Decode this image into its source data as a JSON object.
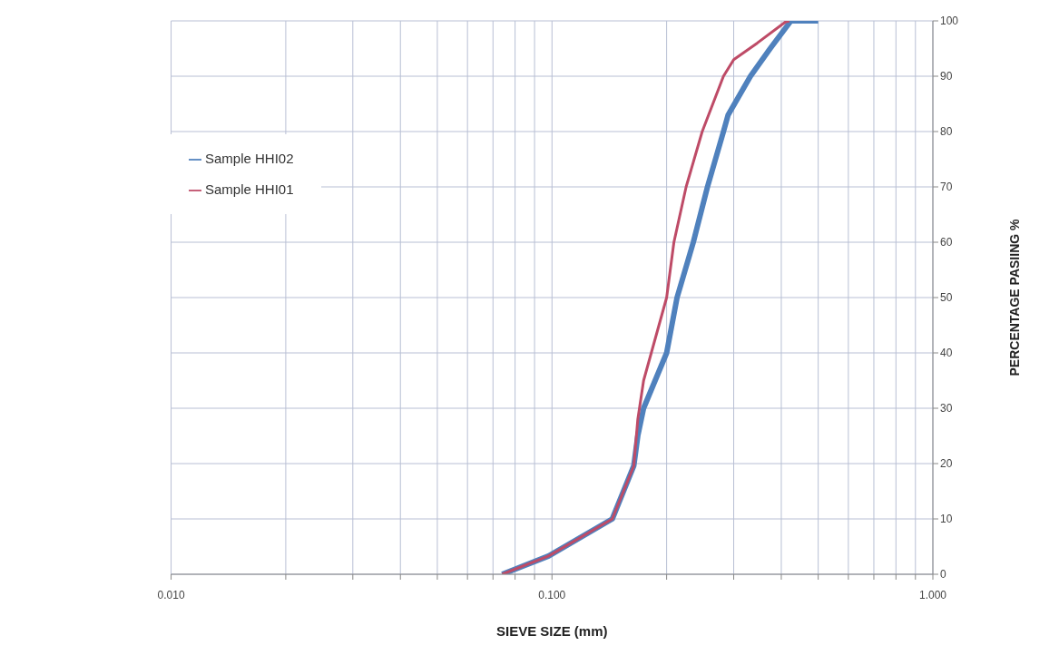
{
  "chart_data": {
    "type": "line",
    "xlabel": "SIEVE SIZE (mm)",
    "ylabel": "PERCENTAGE PASIING %",
    "log": "x",
    "grid": true,
    "legend": "top left",
    "marker": "none",
    "line_style": "solid",
    "xlim": [
      0.01,
      1
    ],
    "xticks": [
      {
        "value": 0.01,
        "label": "0.010"
      },
      {
        "value": 0.02,
        "label": null
      },
      {
        "value": 0.03,
        "label": null
      },
      {
        "value": 0.04,
        "label": null
      },
      {
        "value": 0.05,
        "label": null
      },
      {
        "value": 0.06,
        "label": null
      },
      {
        "value": 0.07,
        "label": null
      },
      {
        "value": 0.08,
        "label": null
      },
      {
        "value": 0.09,
        "label": null
      },
      {
        "value": 0.1,
        "label": "0.100"
      },
      {
        "value": 0.2,
        "label": null
      },
      {
        "value": 0.3,
        "label": null
      },
      {
        "value": 0.4,
        "label": null
      },
      {
        "value": 0.5,
        "label": null
      },
      {
        "value": 0.6,
        "label": null
      },
      {
        "value": 0.7,
        "label": null
      },
      {
        "value": 0.8,
        "label": null
      },
      {
        "value": 0.9,
        "label": null
      },
      {
        "value": 1,
        "label": "1.000"
      }
    ],
    "ylim": [
      0,
      100
    ],
    "yticks": [
      0,
      10,
      20,
      30,
      40,
      50,
      60,
      70,
      80,
      90,
      100
    ],
    "series": [
      {
        "name": "Sample HHI02",
        "color": "#4f81bd",
        "x": [
          0.074,
          0.098,
          0.144,
          0.164,
          0.168,
          0.174,
          0.2,
          0.213,
          0.235,
          0.256,
          0.282,
          0.29,
          0.332,
          0.374,
          0.424,
          0.5
        ],
        "values": [
          0,
          3.3,
          10,
          19.6,
          25,
          30,
          40,
          50,
          60,
          70,
          80,
          83,
          90,
          95,
          100,
          100
        ]
      },
      {
        "name": "Sample HHI01",
        "color": "#be4b67",
        "x": [
          0.074,
          0.098,
          0.144,
          0.164,
          0.168,
          0.174,
          0.2,
          0.209,
          0.225,
          0.248,
          0.282,
          0.3,
          0.346,
          0.41,
          0.42
        ],
        "values": [
          0,
          3.3,
          10,
          19.6,
          28,
          35,
          50,
          60,
          70,
          80,
          90,
          93,
          96,
          99.8,
          100
        ]
      }
    ]
  }
}
